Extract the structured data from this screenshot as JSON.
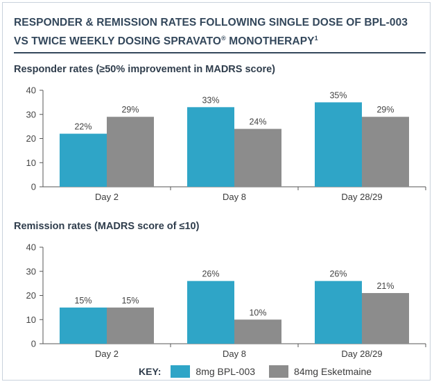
{
  "header": {
    "title": "RESPONDER & REMISSION RATES FOLLOWING SINGLE DOSE OF BPL-003 VS TWICE WEEKLY DOSING SPRAVATO",
    "title_mark": "®",
    "title_tail": " MONOTHERAPY",
    "footnote_ref": "1"
  },
  "legend": {
    "key_label": "KEY:",
    "items": [
      {
        "label": "8mg BPL-003",
        "color": "#2fa5c7"
      },
      {
        "label": "84mg Esketmaine",
        "color": "#8c8c8c"
      }
    ]
  },
  "chart_data": [
    {
      "type": "bar",
      "title": "Responder rates (≥50% improvement in MADRS score)",
      "categories": [
        "Day 2",
        "Day 8",
        "Day 28/29"
      ],
      "series": [
        {
          "name": "8mg BPL-003",
          "values": [
            22,
            33,
            35
          ],
          "labels": [
            "22%",
            "33%",
            "35%"
          ]
        },
        {
          "name": "84mg Esketmaine",
          "values": [
            29,
            24,
            29
          ],
          "labels": [
            "29%",
            "24%",
            "29%"
          ]
        }
      ],
      "yticks": [
        "0",
        "10",
        "20",
        "30",
        "40"
      ],
      "ylim": [
        0,
        40
      ],
      "grid": false,
      "xlabel": "",
      "ylabel": ""
    },
    {
      "type": "bar",
      "title": "Remission rates (MADRS score of ≤10)",
      "categories": [
        "Day 2",
        "Day 8",
        "Day 28/29"
      ],
      "series": [
        {
          "name": "8mg BPL-003",
          "values": [
            15,
            26,
            26
          ],
          "labels": [
            "15%",
            "26%",
            "26%"
          ]
        },
        {
          "name": "84mg Esketmaine",
          "values": [
            15,
            10,
            21
          ],
          "labels": [
            "15%",
            "10%",
            "21%"
          ]
        }
      ],
      "yticks": [
        "0",
        "10",
        "20",
        "30",
        "40"
      ],
      "ylim": [
        0,
        40
      ],
      "grid": false,
      "xlabel": "",
      "ylabel": ""
    }
  ]
}
